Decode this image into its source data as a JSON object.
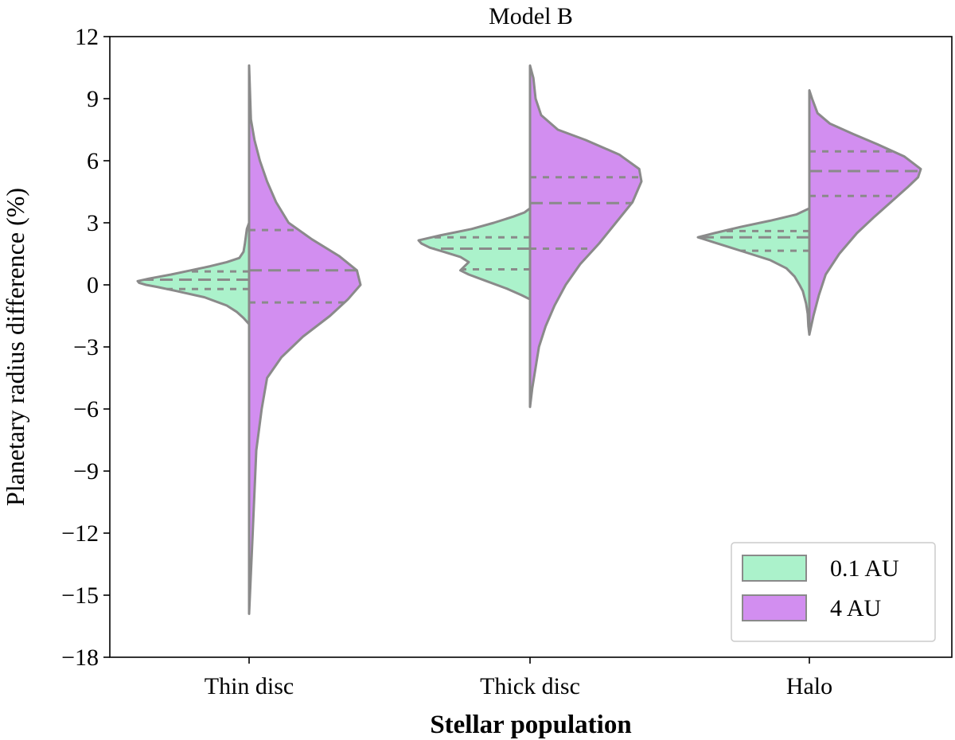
{
  "chart_data": {
    "type": "violin",
    "title": "Model B",
    "xlabel": "Stellar population",
    "ylabel": "Planetary radius difference (%)",
    "ylim": [
      -18,
      12
    ],
    "yticks": [
      12,
      9,
      6,
      3,
      0,
      -3,
      -6,
      -9,
      -12,
      -15,
      -18
    ],
    "ytick_labels": [
      "12",
      "9",
      "6",
      "3",
      "0",
      "−3",
      "−6",
      "−9",
      "−12",
      "−15",
      "−18"
    ],
    "categories": [
      "Thin disc",
      "Thick disc",
      "Halo"
    ],
    "legend": {
      "placement": "lower-right"
    },
    "series": [
      {
        "name": "0.1 AU",
        "side": "left",
        "color": "#abf2cb",
        "violins": [
          {
            "category": "Thin disc",
            "profile": [
              [
                -1.9,
                0
              ],
              [
                -1.6,
                0.2
              ],
              [
                -1.3,
                0.45
              ],
              [
                -1.0,
                0.8
              ],
              [
                -0.6,
                1.6
              ],
              [
                -0.3,
                2.6
              ],
              [
                -0.1,
                3.3
              ],
              [
                0.0,
                3.7
              ],
              [
                0.1,
                3.95
              ],
              [
                0.18,
                4.0
              ],
              [
                0.3,
                3.6
              ],
              [
                0.5,
                2.8
              ],
              [
                0.7,
                2.1
              ],
              [
                0.9,
                1.4
              ],
              [
                1.1,
                0.8
              ],
              [
                1.3,
                0.35
              ],
              [
                1.6,
                0.2
              ],
              [
                2.0,
                0.15
              ],
              [
                2.3,
                0.12
              ],
              [
                2.7,
                0.08
              ],
              [
                3.0,
                0
              ]
            ],
            "quartiles": [
              -0.2,
              0.25,
              0.65
            ]
          },
          {
            "category": "Thick disc",
            "profile": [
              [
                -0.7,
                0
              ],
              [
                -0.5,
                0.3
              ],
              [
                -0.2,
                0.8
              ],
              [
                0.2,
                1.6
              ],
              [
                0.5,
                2.2
              ],
              [
                0.7,
                2.5
              ],
              [
                0.9,
                2.35
              ],
              [
                1.1,
                2.2
              ],
              [
                1.35,
                2.5
              ],
              [
                1.6,
                3.1
              ],
              [
                1.8,
                3.6
              ],
              [
                2.0,
                3.9
              ],
              [
                2.15,
                4.0
              ],
              [
                2.4,
                3.2
              ],
              [
                2.7,
                2.1
              ],
              [
                3.0,
                1.3
              ],
              [
                3.3,
                0.6
              ],
              [
                3.5,
                0.2
              ],
              [
                3.7,
                0
              ]
            ],
            "quartiles": [
              0.75,
              1.75,
              2.3
            ]
          },
          {
            "category": "Halo",
            "profile": [
              [
                -2.4,
                0
              ],
              [
                -2.0,
                0.03
              ],
              [
                -1.4,
                0.05
              ],
              [
                -0.9,
                0.1
              ],
              [
                -0.6,
                0.15
              ],
              [
                -0.3,
                0.2
              ],
              [
                0.0,
                0.3
              ],
              [
                0.4,
                0.45
              ],
              [
                0.8,
                0.7
              ],
              [
                1.2,
                1.2
              ],
              [
                1.5,
                1.8
              ],
              [
                1.8,
                2.4
              ],
              [
                2.1,
                3.0
              ],
              [
                2.3,
                3.4
              ],
              [
                2.5,
                2.9
              ],
              [
                2.8,
                2.1
              ],
              [
                3.1,
                1.2
              ],
              [
                3.4,
                0.4
              ],
              [
                3.7,
                0
              ]
            ],
            "quartiles": [
              1.65,
              2.3,
              2.6
            ]
          }
        ]
      },
      {
        "name": "4 AU",
        "side": "right",
        "color": "#d28ef0",
        "violins": [
          {
            "category": "Thin disc",
            "profile": [
              [
                -15.9,
                0
              ],
              [
                -12,
                0.02
              ],
              [
                -8,
                0.04
              ],
              [
                -6,
                0.07
              ],
              [
                -4.5,
                0.1
              ],
              [
                -3.5,
                0.18
              ],
              [
                -2.5,
                0.3
              ],
              [
                -1.5,
                0.45
              ],
              [
                -0.7,
                0.55
              ],
              [
                0.0,
                0.62
              ],
              [
                0.7,
                0.6
              ],
              [
                1.4,
                0.5
              ],
              [
                2.2,
                0.35
              ],
              [
                3.0,
                0.22
              ],
              [
                4.0,
                0.15
              ],
              [
                5.0,
                0.1
              ],
              [
                6.0,
                0.06
              ],
              [
                7.0,
                0.03
              ],
              [
                8.0,
                0.01
              ],
              [
                10.6,
                0
              ]
            ],
            "quartiles": [
              -0.85,
              0.7,
              2.65
            ]
          },
          {
            "category": "Thick disc",
            "profile": [
              [
                -5.9,
                0
              ],
              [
                -5.0,
                0.02
              ],
              [
                -4.0,
                0.05
              ],
              [
                -3.0,
                0.08
              ],
              [
                -2.0,
                0.14
              ],
              [
                -1.0,
                0.22
              ],
              [
                0.0,
                0.32
              ],
              [
                1.0,
                0.45
              ],
              [
                2.0,
                0.62
              ],
              [
                3.0,
                0.77
              ],
              [
                4.0,
                0.92
              ],
              [
                5.0,
                1.0
              ],
              [
                5.6,
                0.98
              ],
              [
                6.3,
                0.8
              ],
              [
                7.0,
                0.5
              ],
              [
                7.5,
                0.25
              ],
              [
                8.2,
                0.1
              ],
              [
                9.0,
                0.05
              ],
              [
                10.0,
                0.03
              ],
              [
                10.6,
                0
              ]
            ],
            "quartiles": [
              1.75,
              3.95,
              5.2
            ]
          },
          {
            "category": "Halo",
            "profile": [
              [
                -2.4,
                0
              ],
              [
                -1.5,
                0.03
              ],
              [
                -0.5,
                0.07
              ],
              [
                0.5,
                0.12
              ],
              [
                1.5,
                0.22
              ],
              [
                2.5,
                0.35
              ],
              [
                3.3,
                0.48
              ],
              [
                4.0,
                0.6
              ],
              [
                4.7,
                0.72
              ],
              [
                5.2,
                0.8
              ],
              [
                5.6,
                0.82
              ],
              [
                6.2,
                0.7
              ],
              [
                6.8,
                0.5
              ],
              [
                7.3,
                0.32
              ],
              [
                7.8,
                0.15
              ],
              [
                8.3,
                0.06
              ],
              [
                9.0,
                0.02
              ],
              [
                9.4,
                0
              ]
            ],
            "quartiles": [
              4.3,
              5.5,
              6.45
            ]
          }
        ]
      }
    ]
  }
}
